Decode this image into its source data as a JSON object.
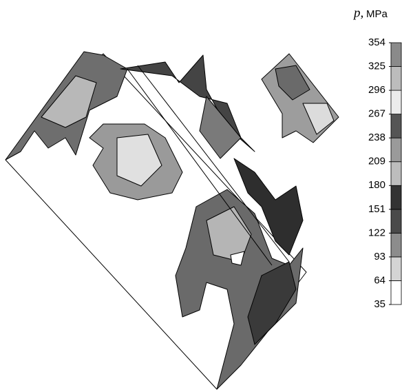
{
  "chart_data": {
    "type": "contour",
    "colorbar": {
      "symbol": "p,",
      "unit": "MPa",
      "ticks": [
        35,
        64,
        93,
        122,
        151,
        180,
        209,
        238,
        267,
        296,
        325,
        354
      ],
      "colors": [
        "#ffffff",
        "#d4d4d4",
        "#8c8c8c",
        "#4a4a4a",
        "#333333",
        "#bdbdbd",
        "#9a9a9a",
        "#555555",
        "#ececec",
        "#bcbcbc",
        "#8a8a8a"
      ]
    }
  }
}
